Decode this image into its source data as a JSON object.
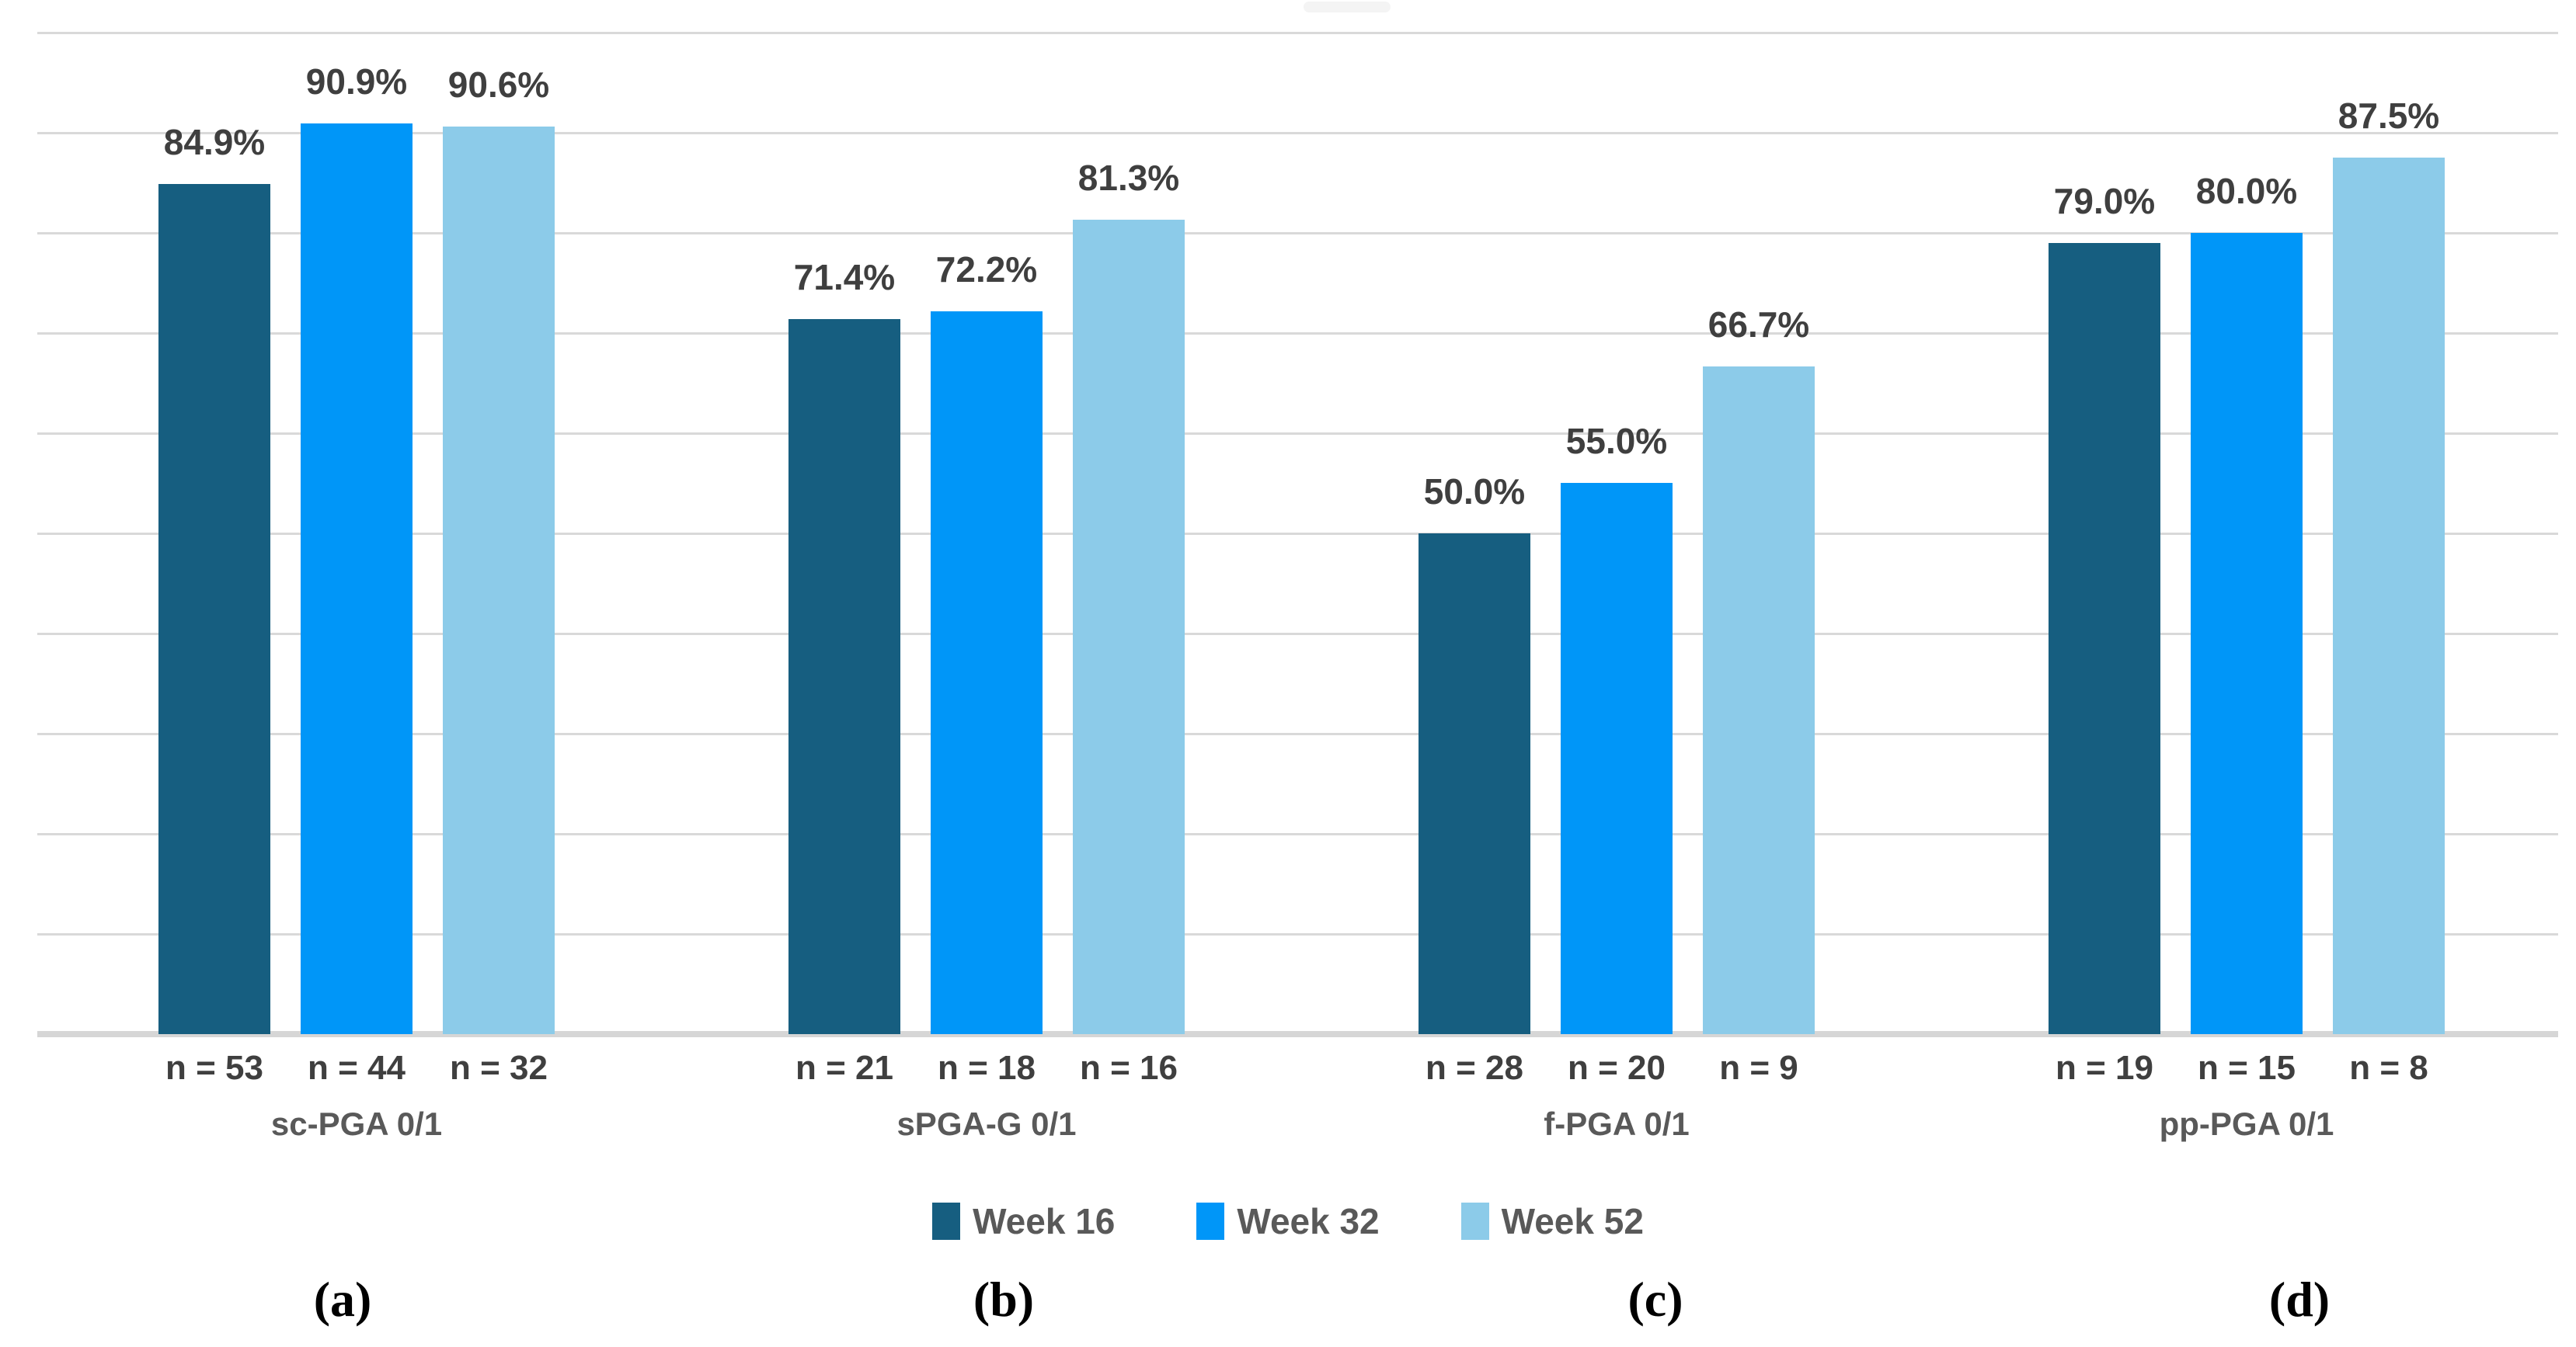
{
  "figure": {
    "background": "#FFFFFF",
    "top_artifact": {
      "visible": true,
      "color": "#F3F3F3"
    }
  },
  "axis": {
    "ymin": 0,
    "ymax": 100,
    "grid_step_pct": 10,
    "gridline_color": "#D9D9D9",
    "axis_line_color": "#D6D6D6"
  },
  "text_colors": {
    "value_label": "#3F3F3F",
    "n_label": "#3F3F3F",
    "category_label": "#595959",
    "legend_label": "#595959",
    "panel_letter": "#000000"
  },
  "legend": {
    "position": "bottom-center",
    "items": [
      {
        "label": "Week 16",
        "color": "#165E80"
      },
      {
        "label": "Week 32",
        "color": "#0096F8"
      },
      {
        "label": "Week 52",
        "color": "#8CCBE9"
      }
    ]
  },
  "panel_letters": [
    "(a)",
    "(b)",
    "(c)",
    "(d)"
  ],
  "chart_data": {
    "type": "bar",
    "title": "",
    "xlabel": "",
    "ylabel": "",
    "ylim": [
      0,
      100
    ],
    "grid": "horizontal gridlines every 10%, light gray, no y-axis tick labels",
    "legend_position": "bottom center",
    "categories": [
      "sc-PGA 0/1",
      "sPGA-G 0/1",
      "f-PGA 0/1",
      "pp-PGA 0/1"
    ],
    "series": [
      {
        "name": "Week 16",
        "color": "#165E80",
        "values": [
          84.9,
          71.4,
          50.0,
          79.0
        ]
      },
      {
        "name": "Week 32",
        "color": "#0096F8",
        "values": [
          90.9,
          72.2,
          55.0,
          80.0
        ]
      },
      {
        "name": "Week 52",
        "color": "#8CCBE9",
        "values": [
          90.6,
          81.3,
          66.7,
          87.5
        ]
      }
    ],
    "groups": [
      {
        "category": "sc-PGA 0/1",
        "panel_letter": "(a)",
        "bars": [
          {
            "series": "Week 16",
            "value": 84.9,
            "value_label": "84.9%",
            "n_label": "n = 53"
          },
          {
            "series": "Week 32",
            "value": 90.9,
            "value_label": "90.9%",
            "n_label": "n = 44"
          },
          {
            "series": "Week 52",
            "value": 90.6,
            "value_label": "90.6%",
            "n_label": "n = 32"
          }
        ]
      },
      {
        "category": "sPGA-G 0/1",
        "panel_letter": "(b)",
        "bars": [
          {
            "series": "Week 16",
            "value": 71.4,
            "value_label": "71.4%",
            "n_label": "n = 21"
          },
          {
            "series": "Week 32",
            "value": 72.2,
            "value_label": "72.2%",
            "n_label": "n = 18"
          },
          {
            "series": "Week 52",
            "value": 81.3,
            "value_label": "81.3%",
            "n_label": "n = 16"
          }
        ]
      },
      {
        "category": "f-PGA 0/1",
        "panel_letter": "(c)",
        "bars": [
          {
            "series": "Week 16",
            "value": 50.0,
            "value_label": "50.0%",
            "n_label": "n = 28"
          },
          {
            "series": "Week 32",
            "value": 55.0,
            "value_label": "55.0%",
            "n_label": "n = 20"
          },
          {
            "series": "Week 52",
            "value": 66.7,
            "value_label": "66.7%",
            "n_label": "n = 9"
          }
        ]
      },
      {
        "category": "pp-PGA 0/1",
        "panel_letter": "(d)",
        "bars": [
          {
            "series": "Week 16",
            "value": 79.0,
            "value_label": "79.0%",
            "n_label": "n = 19"
          },
          {
            "series": "Week 32",
            "value": 80.0,
            "value_label": "80.0%",
            "n_label": "n = 15"
          },
          {
            "series": "Week 52",
            "value": 87.5,
            "value_label": "87.5%",
            "n_label": "n = 8"
          }
        ]
      }
    ]
  }
}
